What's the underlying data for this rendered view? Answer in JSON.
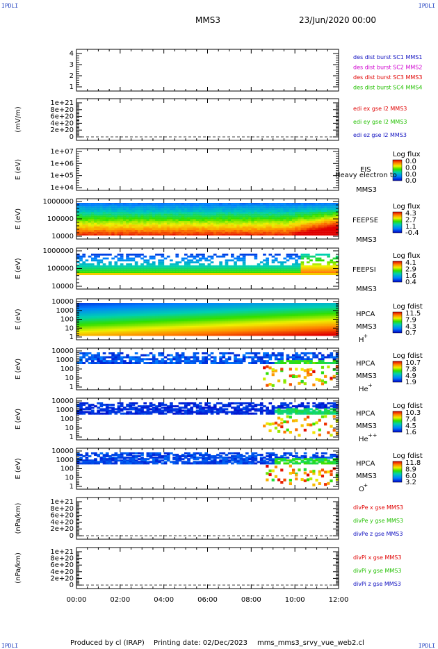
{
  "corners": {
    "tl": "IPDLI",
    "tr": "IPDLI",
    "bl": "IPDLI",
    "br": "IPDLI"
  },
  "header": {
    "title": "MMS3",
    "datetime": "23/Jun/2020 00:00"
  },
  "footer": {
    "produced": "Produced by cl (IRAP)",
    "printed": "Printing date: 02/Dec/2023",
    "file": "mms_mms3_srvy_vue_web2.cl"
  },
  "colors": {
    "red": "#e00000",
    "green": "#22c000",
    "blue": "#1010c0",
    "magenta": "#d000d0",
    "black": "#000000"
  },
  "chart_data": [
    {
      "type": "line",
      "ylim": [
        0.5,
        4.5
      ],
      "ticks": [
        "4",
        "3",
        "2",
        "1"
      ],
      "ylabel": "",
      "legend": [
        {
          "text": "des dist burst SC1 MMS1",
          "color": "blue"
        },
        {
          "text": "des dist burst SC2 MMS2",
          "color": "magenta"
        },
        {
          "text": "des dist burst SC3 MMS3",
          "color": "red"
        },
        {
          "text": "des dist burst SC4 MMS4",
          "color": "green"
        }
      ]
    },
    {
      "type": "line",
      "ticks": [
        "1e+21",
        "8e+20",
        "6e+20",
        "4e+20",
        "2e+20",
        "0"
      ],
      "ylabel": "(mV/m)",
      "legend": [
        {
          "text": "edi ex gse l2 MMS3",
          "color": "red"
        },
        {
          "text": "edi ey gse l2 MMS3",
          "color": "green"
        },
        {
          "text": "edi ez gse l2 MMS3",
          "color": "blue"
        }
      ]
    },
    {
      "type": "heatmap",
      "ticks": [
        "1e+07",
        "1e+06",
        "1e+05",
        "1e+04"
      ],
      "ylabel": "E (eV)",
      "labels": [
        "EIS",
        "Heavy electron to",
        "MMS3"
      ],
      "cbar_title": "Log flux",
      "cbar_ticks": [
        "0.0",
        "0.0",
        "0.0",
        "0.0"
      ]
    },
    {
      "type": "heatmap",
      "ticks": [
        "1000000",
        "100000",
        "10000"
      ],
      "ylabel": "E (eV)",
      "labels": [
        "FEEPSE",
        "MMS3"
      ],
      "cbar_title": "Log flux",
      "cbar_ticks": [
        "4.3",
        "2.7",
        "1.1",
        "-0.4"
      ]
    },
    {
      "type": "heatmap",
      "ticks": [
        "1000000",
        "100000",
        "10000"
      ],
      "ylabel": "E (eV)",
      "labels": [
        "FEEPSI",
        "MMS3"
      ],
      "cbar_title": "Log flux",
      "cbar_ticks": [
        "4.1",
        "2.9",
        "1.6",
        "0.4"
      ]
    },
    {
      "type": "heatmap",
      "ticks": [
        "10000",
        "1000",
        "100",
        "10",
        "1"
      ],
      "ylabel": "E (eV)",
      "labels": [
        "HPCA",
        "MMS3",
        "H",
        "+"
      ],
      "cbar_title": "Log fdist",
      "cbar_ticks": [
        "11.5",
        "7.9",
        "4.3",
        "0.7"
      ]
    },
    {
      "type": "heatmap",
      "ticks": [
        "10000",
        "1000",
        "100",
        "10",
        "1"
      ],
      "ylabel": "E (eV)",
      "labels": [
        "HPCA",
        "MMS3",
        "He",
        "+"
      ],
      "cbar_title": "Log fdist",
      "cbar_ticks": [
        "10.7",
        "7.8",
        "4.9",
        "1.9"
      ]
    },
    {
      "type": "heatmap",
      "ticks": [
        "10000",
        "1000",
        "100",
        "10",
        "1"
      ],
      "ylabel": "E (eV)",
      "labels": [
        "HPCA",
        "MMS3",
        "He",
        "++"
      ],
      "cbar_title": "Log fdist",
      "cbar_ticks": [
        "10.3",
        "7.4",
        "4.5",
        "1.6"
      ]
    },
    {
      "type": "heatmap",
      "ticks": [
        "10000",
        "1000",
        "100",
        "10",
        "1"
      ],
      "ylabel": "E (eV)",
      "labels": [
        "HPCA",
        "MMS3",
        "O",
        "+"
      ],
      "cbar_title": "Log fdist",
      "cbar_ticks": [
        "11.8",
        "8.9",
        "6.0",
        "3.2"
      ]
    },
    {
      "type": "line",
      "ticks": [
        "1e+21",
        "8e+20",
        "6e+20",
        "4e+20",
        "2e+20",
        "0"
      ],
      "ylabel": "(nPa/km)",
      "legend": [
        {
          "text": "divPe x gse MMS3",
          "color": "red"
        },
        {
          "text": "divPe y gse MMS3",
          "color": "green"
        },
        {
          "text": "divPe z gse MMS3",
          "color": "blue"
        }
      ]
    },
    {
      "type": "line",
      "ticks": [
        "1e+21",
        "8e+20",
        "6e+20",
        "4e+20",
        "2e+20",
        "0"
      ],
      "ylabel": "(nPa/km)",
      "legend": [
        {
          "text": "divPi x gse MMS3",
          "color": "red"
        },
        {
          "text": "divPi y gse MMS3",
          "color": "green"
        },
        {
          "text": "divPi z gse MMS3",
          "color": "blue"
        }
      ],
      "xticks": [
        "00:00",
        "02:00",
        "04:00",
        "06:00",
        "08:00",
        "10:00",
        "12:00"
      ]
    }
  ]
}
